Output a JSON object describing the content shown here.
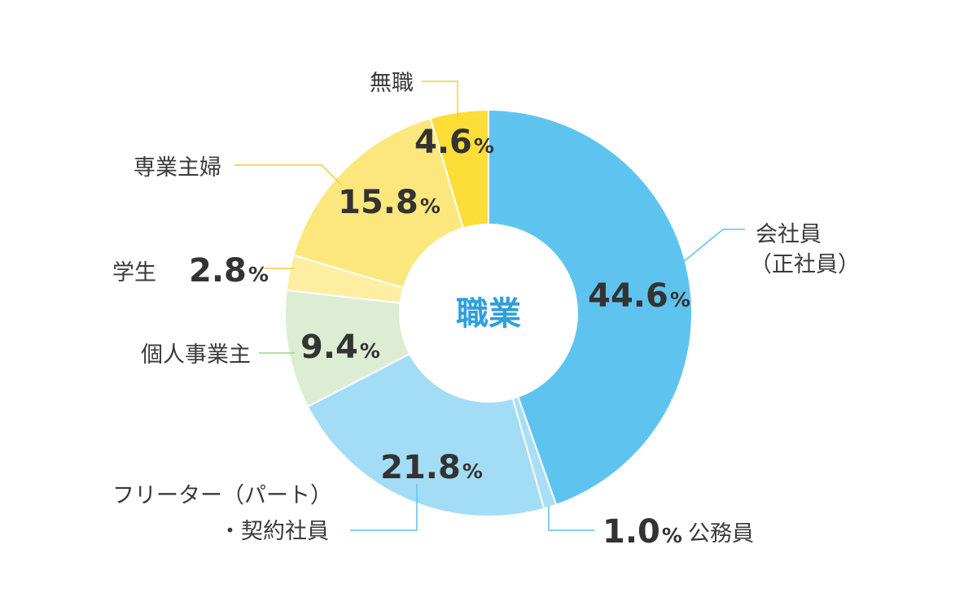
{
  "chart_data": {
    "type": "pie",
    "donut": true,
    "center_label": "職業",
    "categories": [
      "会社員（正社員）",
      "公務員",
      "フリーター（パート）・契約社員",
      "個人事業主",
      "学生",
      "専業主婦",
      "無職"
    ],
    "values": [
      44.6,
      1.0,
      21.8,
      9.4,
      2.8,
      15.8,
      4.6
    ],
    "unit": "%",
    "start_angle_deg": 0,
    "direction": "clockwise",
    "slices": [
      {
        "name": "会社員",
        "name_line2": "（正社員）",
        "value": 44.6,
        "value_label": "44.6",
        "color": "#5ec4ef"
      },
      {
        "name": "公務員",
        "value": 1.0,
        "value_label": "1.0",
        "color": "#a9def6"
      },
      {
        "name": "フリーター（パート）",
        "name_line2": "・契約社員",
        "value": 21.8,
        "value_label": "21.8",
        "color": "#a3dcf5"
      },
      {
        "name": "個人事業主",
        "value": 9.4,
        "value_label": "9.4",
        "color": "#dcedd3"
      },
      {
        "name": "学生",
        "value": 2.8,
        "value_label": "2.8",
        "color": "#fdeea2"
      },
      {
        "name": "専業主婦",
        "value": 15.8,
        "value_label": "15.8",
        "color": "#fce77c"
      },
      {
        "name": "無職",
        "value": 4.6,
        "value_label": "4.6",
        "color": "#fddd37"
      }
    ],
    "leader_colors": {
      "blue": "#5ec4ef",
      "green": "#9fd28a",
      "yellow": "#f7cc3c"
    },
    "center_color": "#2f9fdc",
    "legend": "none"
  }
}
